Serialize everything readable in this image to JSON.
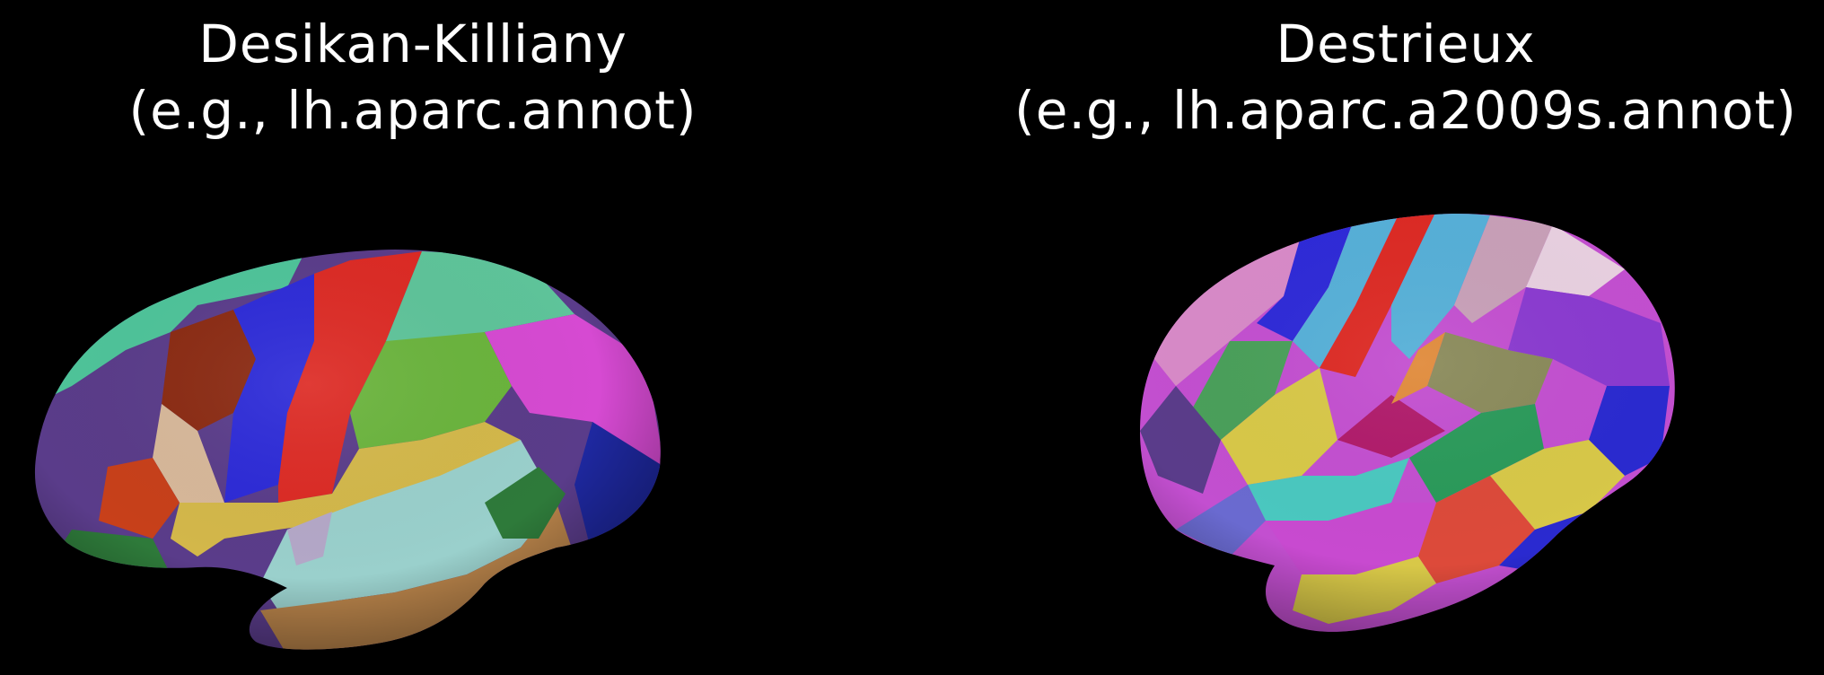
{
  "panels": [
    {
      "title": "Desikan-Killiany",
      "subtitle": "(e.g., lh.aparc.annot)",
      "image": "brain-surface-desikan-killiany-parcellation"
    },
    {
      "title": "Destrieux",
      "subtitle": "(e.g., lh.aparc.a2009s.annot)",
      "image": "brain-surface-destrieux-parcellation"
    }
  ],
  "colors": {
    "background": "#000000",
    "text": "#ffffff"
  }
}
